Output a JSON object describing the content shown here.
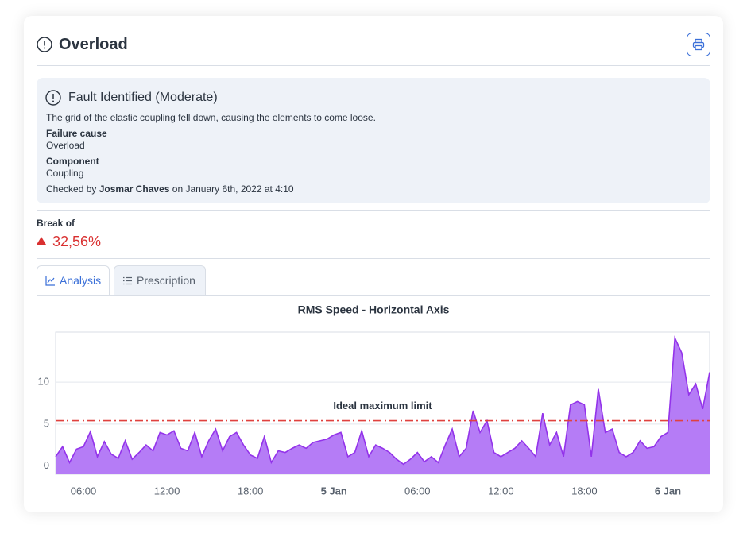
{
  "header": {
    "title": "Overload"
  },
  "fault": {
    "title": "Fault Identified (Moderate)",
    "description": "The grid of the elastic coupling fell down, causing the elements to come loose.",
    "failure_cause_label": "Failure cause",
    "failure_cause": "Overload",
    "component_label": "Component",
    "component": "Coupling",
    "checked_prefix": "Checked by",
    "checked_by": "Josmar Chaves",
    "checked_suffix": "on January 6th, 2022 at 4:10"
  },
  "break": {
    "label": "Break of",
    "value": "32,56%"
  },
  "tabs": [
    "Analysis",
    "Prescription"
  ],
  "chart_data": {
    "type": "area",
    "title": "RMS Speed - Horizontal Axis",
    "categories": [
      null,
      null,
      null,
      null,
      "06:00",
      null,
      null,
      null,
      null,
      null,
      null,
      null,
      null,
      null,
      null,
      null,
      "12:00",
      null,
      null,
      null,
      null,
      null,
      null,
      null,
      null,
      null,
      null,
      null,
      "18:00",
      null,
      null,
      null,
      null,
      null,
      null,
      null,
      null,
      null,
      null,
      null,
      "5 Jan",
      null,
      null,
      null,
      null,
      null,
      null,
      null,
      null,
      null,
      null,
      null,
      "06:00",
      null,
      null,
      null,
      null,
      null,
      null,
      null,
      null,
      null,
      null,
      null,
      "12:00",
      null,
      null,
      null,
      null,
      null,
      null,
      null,
      null,
      null,
      null,
      null,
      "18:00",
      null,
      null,
      null,
      null,
      null,
      null,
      null,
      null,
      null,
      null,
      null,
      "6 Jan",
      null,
      null,
      null,
      null,
      null,
      null
    ],
    "values": [
      1.1,
      2.3,
      0.4,
      2.0,
      2.3,
      4.1,
      1.1,
      2.9,
      1.4,
      0.9,
      3.0,
      0.8,
      1.6,
      2.5,
      1.8,
      4.0,
      3.7,
      4.2,
      2.1,
      1.8,
      4.0,
      1.1,
      3.0,
      4.4,
      1.8,
      3.5,
      4.0,
      2.5,
      1.3,
      0.9,
      3.5,
      0.4,
      1.8,
      1.6,
      2.1,
      2.5,
      2.1,
      2.8,
      3.0,
      3.2,
      3.7,
      4.0,
      1.1,
      1.6,
      4.2,
      1.1,
      2.5,
      2.1,
      1.6,
      0.8,
      0.2,
      0.8,
      1.6,
      0.5,
      1.1,
      0.4,
      2.5,
      4.4,
      1.1,
      2.1,
      6.6,
      4.0,
      5.4,
      1.6,
      1.1,
      1.6,
      2.1,
      3.0,
      2.1,
      1.1,
      6.3,
      2.5,
      4.0,
      1.1,
      7.3,
      7.7,
      7.3,
      1.1,
      9.2,
      4.0,
      4.4,
      1.6,
      1.1,
      1.6,
      3.0,
      2.1,
      2.3,
      3.5,
      4.0,
      15.3,
      13.5,
      8.5,
      9.8,
      6.8,
      11.2
    ],
    "color": "#9333ea",
    "fill": "#b57cf6",
    "ylim": [
      -1,
      16
    ],
    "yticks": [
      0,
      5,
      10
    ],
    "grid": true,
    "limit": {
      "label": "Ideal maximum limit",
      "value": 5.4,
      "color": "#e0413f"
    }
  }
}
